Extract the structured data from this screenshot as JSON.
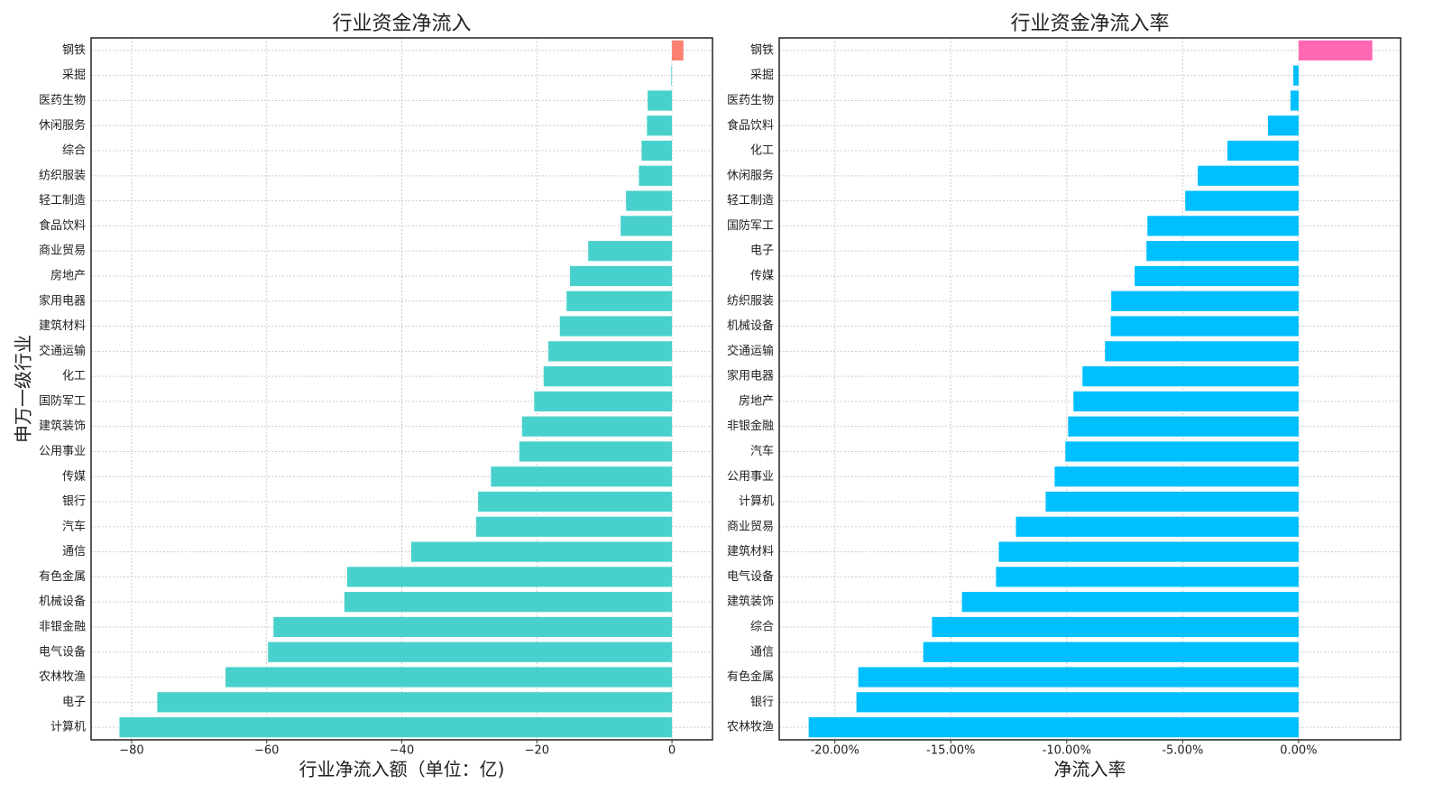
{
  "chart_data": [
    {
      "type": "barh",
      "title": "行业资金净流入",
      "xlabel": "行业净流入额（单位：亿)",
      "ylabel": "申万一级行业",
      "categories": [
        "钢铁",
        "采掘",
        "医药生物",
        "休闲服务",
        "综合",
        "纺织服装",
        "轻工制造",
        "食品饮料",
        "商业贸易",
        "房地产",
        "家用电器",
        "建筑材料",
        "交通运输",
        "化工",
        "国防军工",
        "建筑装饰",
        "公用事业",
        "传媒",
        "银行",
        "汽车",
        "通信",
        "有色金属",
        "机械设备",
        "非银金融",
        "电气设备",
        "农林牧渔",
        "电子",
        "计算机"
      ],
      "values": [
        1.7,
        -0.1,
        -3.6,
        -3.7,
        -4.5,
        -4.9,
        -6.8,
        -7.6,
        -12.4,
        -15.1,
        -15.6,
        -16.6,
        -18.3,
        -19.0,
        -20.4,
        -22.2,
        -22.6,
        -26.8,
        -28.7,
        -29.0,
        -38.6,
        -48.1,
        -48.5,
        -59.0,
        -59.8,
        -66.1,
        -76.2,
        -81.8
      ],
      "color": "#48d1cc",
      "positive_color": "#fa8072",
      "xlim": [
        -86,
        6
      ],
      "xticks": [
        {
          "value": -80,
          "label": "−80"
        },
        {
          "value": -60,
          "label": "−60"
        },
        {
          "value": -40,
          "label": "−40"
        },
        {
          "value": -20,
          "label": "−20"
        },
        0
      ],
      "grid": true
    },
    {
      "type": "barh",
      "title": "行业资金净流入率",
      "xlabel": "净流入率",
      "categories": [
        "钢铁",
        "采掘",
        "医药生物",
        "食品饮料",
        "化工",
        "休闲服务",
        "轻工制造",
        "国防军工",
        "电子",
        "传媒",
        "纺织服装",
        "机械设备",
        "交通运输",
        "家用电器",
        "房地产",
        "非银金融",
        "汽车",
        "公用事业",
        "计算机",
        "商业贸易",
        "建筑材料",
        "电气设备",
        "建筑装饰",
        "综合",
        "通信",
        "有色金属",
        "银行",
        "农林牧渔"
      ],
      "values": [
        3.18,
        -0.23,
        -0.35,
        -1.32,
        -3.07,
        -4.35,
        -4.89,
        -6.52,
        -6.56,
        -7.07,
        -8.08,
        -8.1,
        -8.35,
        -9.32,
        -9.71,
        -9.94,
        -10.06,
        -10.52,
        -10.91,
        -12.19,
        -12.93,
        -13.05,
        -14.52,
        -15.81,
        -16.19,
        -18.99,
        -19.07,
        -21.13
      ],
      "color": "#00bfff",
      "positive_color": "#ff69b4",
      "xlim": [
        -22.4,
        4.4
      ],
      "xticks": [
        {
          "value": -20,
          "label": "-20.00%"
        },
        {
          "value": -15,
          "label": "-15.00%"
        },
        {
          "value": -10,
          "label": "-10.00%"
        },
        {
          "value": -5,
          "label": "-5.00%"
        },
        {
          "value": 0,
          "label": "0.00%"
        }
      ],
      "grid": true
    }
  ]
}
